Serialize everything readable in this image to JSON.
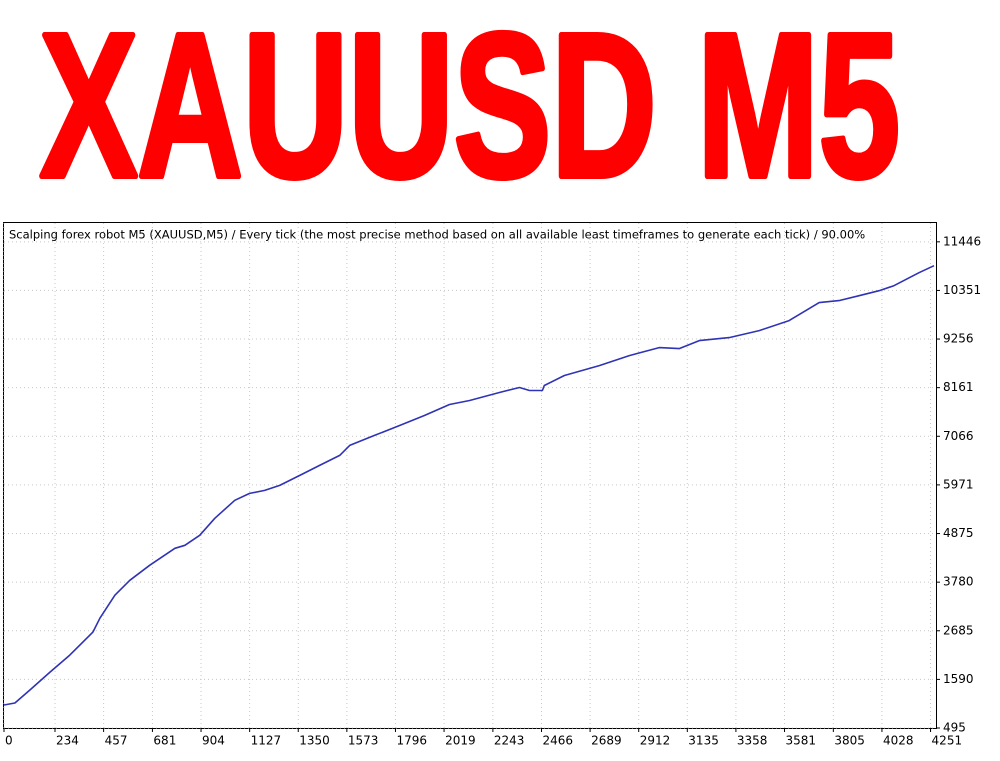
{
  "chart_data": {
    "type": "line",
    "title": "XAUUSD M5",
    "subtitle": "Scalping forex robot M5 (XAUUSD,M5) / Every tick (the most precise method based on all available least timeframes to generate each tick) / 90.00%",
    "x": [
      0,
      50,
      119,
      211,
      302,
      408,
      440,
      509,
      577,
      669,
      784,
      830,
      898,
      967,
      1059,
      1127,
      1196,
      1265,
      1357,
      1448,
      1540,
      1586,
      1700,
      1815,
      1929,
      2044,
      2136,
      2273,
      2365,
      2411,
      2470,
      2479,
      2571,
      2731,
      2869,
      3006,
      3098,
      3190,
      3327,
      3465,
      3602,
      3740,
      3831,
      3923,
      4015,
      4083,
      4198,
      4267
    ],
    "values": [
      1012,
      1057,
      1350,
      1754,
      2137,
      2654,
      2969,
      3486,
      3823,
      4161,
      4543,
      4611,
      4836,
      5218,
      5623,
      5780,
      5848,
      5960,
      6185,
      6410,
      6635,
      6860,
      7085,
      7309,
      7534,
      7782,
      7872,
      8052,
      8164,
      8097,
      8097,
      8209,
      8434,
      8659,
      8884,
      9064,
      9041,
      9221,
      9288,
      9446,
      9671,
      10076,
      10121,
      10233,
      10345,
      10458,
      10750,
      10908
    ],
    "color": "#2f33b5",
    "xlim": [
      0,
      4276
    ],
    "ylim": [
      495,
      11870
    ],
    "xticks": [
      0,
      234,
      457,
      681,
      904,
      1127,
      1350,
      1573,
      1796,
      2019,
      2243,
      2466,
      2689,
      2912,
      3135,
      3358,
      3581,
      3805,
      4028,
      4251
    ],
    "yticks": [
      495,
      1590,
      2685,
      3780,
      4875,
      5971,
      7066,
      8161,
      9256,
      10351,
      11446
    ],
    "grid": true,
    "title_color": "#ff0000"
  }
}
